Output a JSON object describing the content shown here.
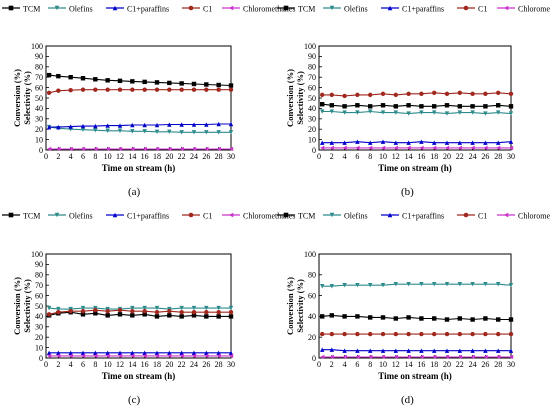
{
  "legend": [
    {
      "label": "TCM",
      "color": "#000000",
      "marker": "square"
    },
    {
      "label": "Olefins",
      "color": "#2e8b8b",
      "marker": "triangle-down"
    },
    {
      "label": "C1+paraffins",
      "color": "#0000cc",
      "marker": "triangle-up"
    },
    {
      "label": "C1",
      "color": "#a0281e",
      "marker": "circle"
    },
    {
      "label": "Chloromethanes",
      "color": "#cc33cc",
      "marker": "triangle-left"
    }
  ],
  "chart_data": [
    {
      "type": "line",
      "panel_label": "(a)",
      "title": "",
      "xlabel": "Time on stream (h)",
      "ylabel": "Conversion (%)",
      "ylabel2": "Selectivity (%)",
      "xlim": [
        0,
        30
      ],
      "ylim": [
        0,
        100
      ],
      "xticks": [
        0,
        2,
        4,
        6,
        8,
        10,
        12,
        14,
        16,
        18,
        20,
        22,
        24,
        26,
        28,
        30
      ],
      "yticks": [
        0,
        10,
        20,
        30,
        40,
        50,
        60,
        70,
        80,
        90,
        100
      ],
      "series": [
        {
          "name": "TCM",
          "x": [
            0.5,
            2,
            4,
            6,
            8,
            10,
            12,
            14,
            16,
            18,
            20,
            22,
            24,
            26,
            28,
            30
          ],
          "values": [
            72,
            71,
            70,
            69,
            68,
            67,
            66.5,
            66,
            65.5,
            65,
            64.5,
            64,
            63.5,
            63,
            62.5,
            62
          ]
        },
        {
          "name": "Olefins",
          "x": [
            0.5,
            2,
            4,
            6,
            8,
            10,
            12,
            14,
            16,
            18,
            20,
            22,
            24,
            26,
            28,
            30
          ],
          "values": [
            22,
            21,
            20,
            19.5,
            19,
            18.5,
            18.5,
            18,
            18,
            17.5,
            17.5,
            17,
            17,
            17,
            17,
            17
          ]
        },
        {
          "name": "C1+paraffins",
          "x": [
            0.5,
            2,
            4,
            6,
            8,
            10,
            12,
            14,
            16,
            18,
            20,
            22,
            24,
            26,
            28,
            30
          ],
          "values": [
            22,
            22,
            22.5,
            23,
            23,
            23.5,
            23.5,
            24,
            24,
            24,
            24.5,
            24.5,
            24.5,
            24.5,
            25,
            25
          ]
        },
        {
          "name": "C1",
          "x": [
            0.5,
            2,
            4,
            6,
            8,
            10,
            12,
            14,
            16,
            18,
            20,
            22,
            24,
            26,
            28,
            30
          ],
          "values": [
            55,
            57,
            57.5,
            58,
            58,
            58,
            58,
            58,
            58,
            58,
            58,
            58,
            58,
            58,
            58,
            58
          ]
        },
        {
          "name": "Chloromethanes",
          "x": [
            0.5,
            2,
            4,
            6,
            8,
            10,
            12,
            14,
            16,
            18,
            20,
            22,
            24,
            26,
            28,
            30
          ],
          "values": [
            1,
            1,
            1,
            1,
            1,
            1,
            1,
            1,
            1,
            1,
            1,
            1,
            1,
            1,
            1,
            1
          ]
        }
      ]
    },
    {
      "type": "line",
      "panel_label": "(b)",
      "title": "",
      "xlabel": "Time on stream (h)",
      "ylabel": "Conversion (%)",
      "ylabel2": "Selectivity (%)",
      "xlim": [
        0,
        30
      ],
      "ylim": [
        0,
        100
      ],
      "xticks": [
        0,
        2,
        4,
        6,
        8,
        10,
        12,
        14,
        16,
        18,
        20,
        22,
        24,
        26,
        28,
        30
      ],
      "yticks": [
        0,
        10,
        20,
        30,
        40,
        50,
        60,
        70,
        80,
        90,
        100
      ],
      "series": [
        {
          "name": "TCM",
          "x": [
            0.5,
            2,
            4,
            6,
            8,
            10,
            12,
            14,
            16,
            18,
            20,
            22,
            24,
            26,
            28,
            30
          ],
          "values": [
            44,
            43,
            42,
            43,
            42,
            43,
            42,
            43,
            42,
            42,
            43,
            42,
            42,
            42,
            43,
            42
          ]
        },
        {
          "name": "Olefins",
          "x": [
            0.5,
            2,
            4,
            6,
            8,
            10,
            12,
            14,
            16,
            18,
            20,
            22,
            24,
            26,
            28,
            30
          ],
          "values": [
            37,
            37,
            36,
            36,
            37,
            36,
            36,
            35,
            36,
            36,
            35,
            36,
            36,
            35,
            36,
            35
          ]
        },
        {
          "name": "C1+paraffins",
          "x": [
            0.5,
            2,
            4,
            6,
            8,
            10,
            12,
            14,
            16,
            18,
            20,
            22,
            24,
            26,
            28,
            30
          ],
          "values": [
            7,
            7,
            7,
            8,
            7,
            8,
            7,
            7,
            8,
            7,
            7,
            7,
            7,
            7,
            7,
            8
          ]
        },
        {
          "name": "C1",
          "x": [
            0.5,
            2,
            4,
            6,
            8,
            10,
            12,
            14,
            16,
            18,
            20,
            22,
            24,
            26,
            28,
            30
          ],
          "values": [
            53,
            53,
            52,
            53,
            53,
            54,
            53,
            54,
            54,
            55,
            54,
            55,
            54,
            54,
            55,
            54
          ]
        },
        {
          "name": "Chloromethanes",
          "x": [
            0.5,
            2,
            4,
            6,
            8,
            10,
            12,
            14,
            16,
            18,
            20,
            22,
            24,
            26,
            28,
            30
          ],
          "values": [
            2,
            2,
            2,
            2,
            2,
            2,
            2,
            2,
            2,
            2,
            2,
            2,
            2,
            2,
            2,
            2
          ]
        }
      ]
    },
    {
      "type": "line",
      "panel_label": "(c)",
      "title": "",
      "xlabel": "Time on stream (h)",
      "ylabel": "Conversion (%)",
      "ylabel2": "Selectivity (%)",
      "xlim": [
        0,
        30
      ],
      "ylim": [
        0,
        100
      ],
      "xticks": [
        0,
        2,
        4,
        6,
        8,
        10,
        12,
        14,
        16,
        18,
        20,
        22,
        24,
        26,
        28,
        30
      ],
      "yticks": [
        0,
        10,
        20,
        30,
        40,
        50,
        60,
        70,
        80,
        90,
        100
      ],
      "series": [
        {
          "name": "TCM",
          "x": [
            0.5,
            2,
            4,
            6,
            8,
            10,
            12,
            14,
            16,
            18,
            20,
            22,
            24,
            26,
            28,
            30
          ],
          "values": [
            41,
            43,
            44,
            42,
            43,
            41,
            42,
            41,
            42,
            40,
            41,
            40,
            41,
            40,
            40,
            40
          ]
        },
        {
          "name": "Olefins",
          "x": [
            0.5,
            2,
            4,
            6,
            8,
            10,
            12,
            14,
            16,
            18,
            20,
            22,
            24,
            26,
            28,
            30
          ],
          "values": [
            48,
            47,
            47,
            48,
            48,
            47,
            47,
            48,
            48,
            48,
            47,
            48,
            48,
            48,
            48,
            48
          ]
        },
        {
          "name": "C1+paraffins",
          "x": [
            0.5,
            2,
            4,
            6,
            8,
            10,
            12,
            14,
            16,
            18,
            20,
            22,
            24,
            26,
            28,
            30
          ],
          "values": [
            5,
            5,
            5,
            5,
            5,
            5,
            5,
            5,
            5,
            5,
            5,
            5,
            5,
            5,
            5,
            5
          ]
        },
        {
          "name": "C1",
          "x": [
            0.5,
            2,
            4,
            6,
            8,
            10,
            12,
            14,
            16,
            18,
            20,
            22,
            24,
            26,
            28,
            30
          ],
          "values": [
            42,
            44,
            45,
            45,
            46,
            45,
            46,
            45,
            45,
            44,
            45,
            44,
            44,
            44,
            44,
            44
          ]
        },
        {
          "name": "Chloromethanes",
          "x": [
            0.5,
            2,
            4,
            6,
            8,
            10,
            12,
            14,
            16,
            18,
            20,
            22,
            24,
            26,
            28,
            30
          ],
          "values": [
            2,
            2,
            2,
            2,
            2,
            2,
            2,
            2,
            2,
            2,
            2,
            2,
            2,
            2,
            2,
            2
          ]
        }
      ]
    },
    {
      "type": "line",
      "panel_label": "(d)",
      "title": "",
      "xlabel": "Time on stream (h)",
      "ylabel": "Conversion (%)",
      "ylabel2": "Selectivity (%)",
      "xlim": [
        0,
        30
      ],
      "ylim": [
        0,
        100
      ],
      "xticks": [
        0,
        2,
        4,
        6,
        8,
        10,
        12,
        14,
        16,
        18,
        20,
        22,
        24,
        26,
        28,
        30
      ],
      "yticks": [
        0,
        20,
        40,
        60,
        80,
        100
      ],
      "series": [
        {
          "name": "TCM",
          "x": [
            0.5,
            2,
            4,
            6,
            8,
            10,
            12,
            14,
            16,
            18,
            20,
            22,
            24,
            26,
            28,
            30
          ],
          "values": [
            40,
            41,
            40,
            40,
            39,
            39,
            38,
            39,
            38,
            38,
            37,
            38,
            37,
            38,
            37,
            37
          ]
        },
        {
          "name": "Olefins",
          "x": [
            0.5,
            2,
            4,
            6,
            8,
            10,
            12,
            14,
            16,
            18,
            20,
            22,
            24,
            26,
            28,
            30
          ],
          "values": [
            69,
            69,
            70,
            70,
            70,
            70,
            71,
            71,
            71,
            71,
            71,
            71,
            71,
            71,
            71,
            70
          ]
        },
        {
          "name": "C1+paraffins",
          "x": [
            0.5,
            2,
            4,
            6,
            8,
            10,
            12,
            14,
            16,
            18,
            20,
            22,
            24,
            26,
            28,
            30
          ],
          "values": [
            8,
            8,
            7,
            7,
            7,
            7,
            7,
            7,
            7,
            7,
            7,
            7,
            7,
            7,
            7,
            7
          ]
        },
        {
          "name": "C1",
          "x": [
            0.5,
            2,
            4,
            6,
            8,
            10,
            12,
            14,
            16,
            18,
            20,
            22,
            24,
            26,
            28,
            30
          ],
          "values": [
            23,
            23,
            23,
            23,
            23,
            23,
            23,
            23,
            23,
            23,
            23,
            23,
            23,
            23,
            23,
            23
          ]
        },
        {
          "name": "Chloromethanes",
          "x": [
            0.5,
            2,
            4,
            6,
            8,
            10,
            12,
            14,
            16,
            18,
            20,
            22,
            24,
            26,
            28,
            30
          ],
          "values": [
            1,
            1,
            1,
            1,
            1,
            1,
            1,
            1,
            1,
            1,
            1,
            1,
            1,
            1,
            1,
            1
          ]
        }
      ]
    }
  ]
}
